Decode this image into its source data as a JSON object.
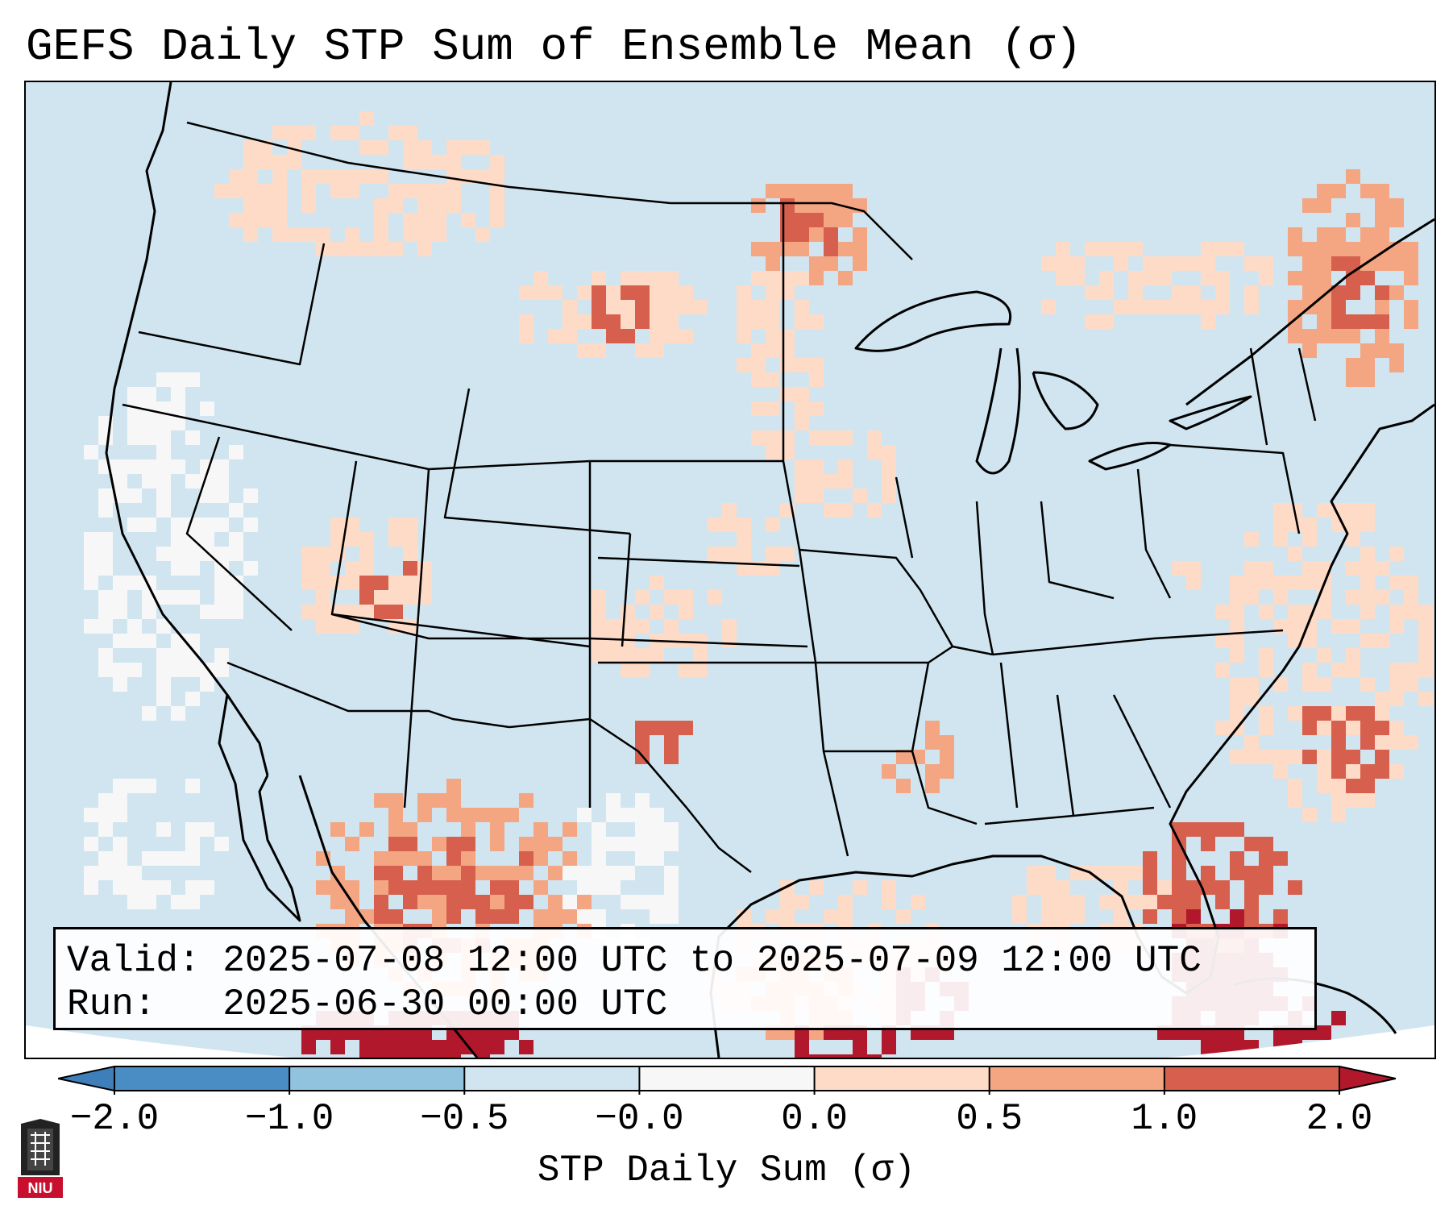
{
  "title": "GEFS Daily STP Sum of Ensemble Mean (σ)",
  "info": {
    "valid_line": "Valid: 2025-07-08 12:00 UTC to 2025-07-09 12:00 UTC",
    "run_line": "Run:   2025-06-30 00:00 UTC"
  },
  "colorbar": {
    "label": "STP Daily Sum (σ)",
    "ticks": [
      "−2.0",
      "−1.0",
      "−0.5",
      "−0.0",
      "0.0",
      "0.5",
      "1.0",
      "2.0"
    ],
    "bins": [
      {
        "range": "< -2.0",
        "color": "#3f7fb9"
      },
      {
        "range": "-2.0 to -1.0",
        "color": "#4a8cc4"
      },
      {
        "range": "-1.0 to -0.5",
        "color": "#92c3de"
      },
      {
        "range": "-0.5 to -0.0",
        "color": "#d1e5f0"
      },
      {
        "range": "-0.0 to 0.0",
        "color": "#f7f7f7"
      },
      {
        "range": "0.0 to 0.5",
        "color": "#fddbc7"
      },
      {
        "range": "0.5 to 1.0",
        "color": "#f4a582"
      },
      {
        "range": "1.0 to 2.0",
        "color": "#d6604d"
      },
      {
        "range": "> 2.0",
        "color": "#b2182b"
      }
    ]
  },
  "map": {
    "region": "CONUS",
    "background_color": "#d1e5f0",
    "hotspots": [
      {
        "name": "Upper Midwest / Dakotas",
        "level": "0.5 to 1.0"
      },
      {
        "name": "Southern Utah",
        "level": "1.0 to 2.0"
      },
      {
        "name": "Northern Mexico",
        "level": "1.0 to 2.0"
      },
      {
        "name": "Florida Peninsula",
        "level": "> 2.0"
      },
      {
        "name": "New England / Quebec",
        "level": "1.0 to 2.0"
      },
      {
        "name": "Western Atlantic",
        "level": "1.0 to 2.0"
      }
    ]
  },
  "logo": {
    "text": "NIU"
  }
}
